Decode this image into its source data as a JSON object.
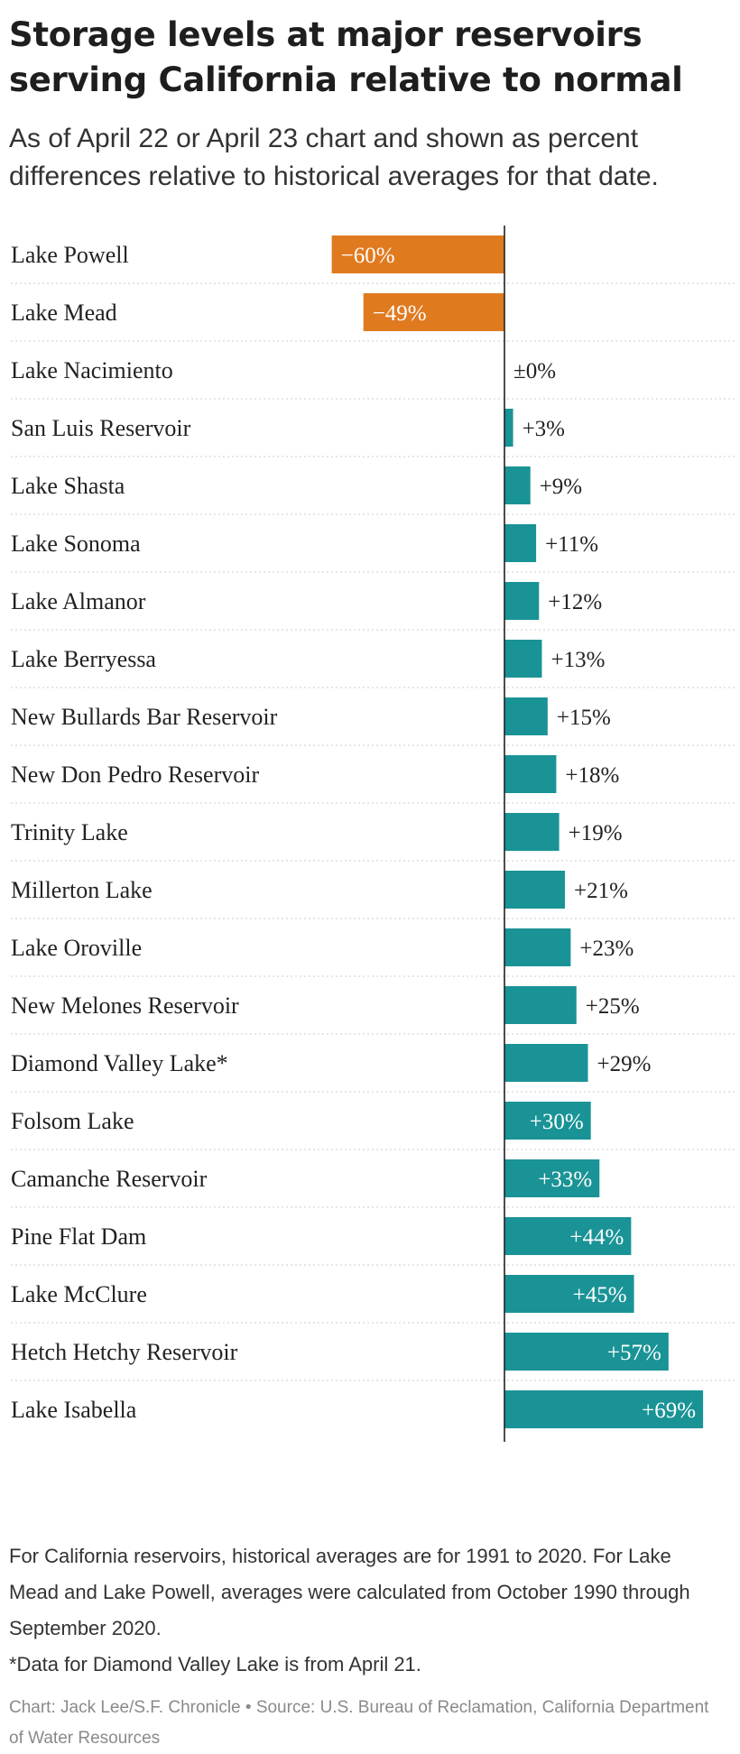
{
  "title": "Storage levels at major reservoirs serving California relative to normal",
  "subtitle": "As of April 22 or April 23 chart and shown as percent differences relative to historical averages for that date.",
  "notes": [
    "For California reservoirs, historical averages are for 1991 to 2020. For Lake Mead and Lake Powell, averages were calculated from October 1990 through September 2020.",
    "*Data for Diamond Valley Lake is from April 21."
  ],
  "credit": "Chart: Jack Lee/S.F. Chronicle • Source: U.S. Bureau of Reclamation, California Department of Water Resources",
  "colors": {
    "negative": "#e07a1f",
    "positive": "#1a9396",
    "axis": "#222222",
    "gridline": "#cccccc"
  },
  "chart_data": {
    "type": "bar",
    "orientation": "horizontal",
    "unit": "%",
    "categories": [
      "Lake Powell",
      "Lake Mead",
      "Lake Nacimiento",
      "San Luis Reservoir",
      "Lake Shasta",
      "Lake Sonoma",
      "Lake Almanor",
      "Lake Berryessa",
      "New Bullards Bar Reservoir",
      "New Don Pedro Reservoir",
      "Trinity Lake",
      "Millerton Lake",
      "Lake Oroville",
      "New Melones Reservoir",
      "Diamond Valley Lake*",
      "Folsom Lake",
      "Camanche Reservoir",
      "Pine Flat Dam",
      "Lake McClure",
      "Hetch Hetchy Reservoir",
      "Lake Isabella"
    ],
    "values": [
      -60,
      -49,
      0,
      3,
      9,
      11,
      12,
      13,
      15,
      18,
      19,
      21,
      23,
      25,
      29,
      30,
      33,
      44,
      45,
      57,
      69
    ],
    "labels": [
      "−60%",
      "−49%",
      "±0%",
      "+3%",
      "+9%",
      "+11%",
      "+12%",
      "+13%",
      "+15%",
      "+18%",
      "+19%",
      "+21%",
      "+23%",
      "+25%",
      "+29%",
      "+30%",
      "+33%",
      "+44%",
      "+45%",
      "+57%",
      "+69%"
    ],
    "xlim": [
      -60,
      69
    ]
  }
}
